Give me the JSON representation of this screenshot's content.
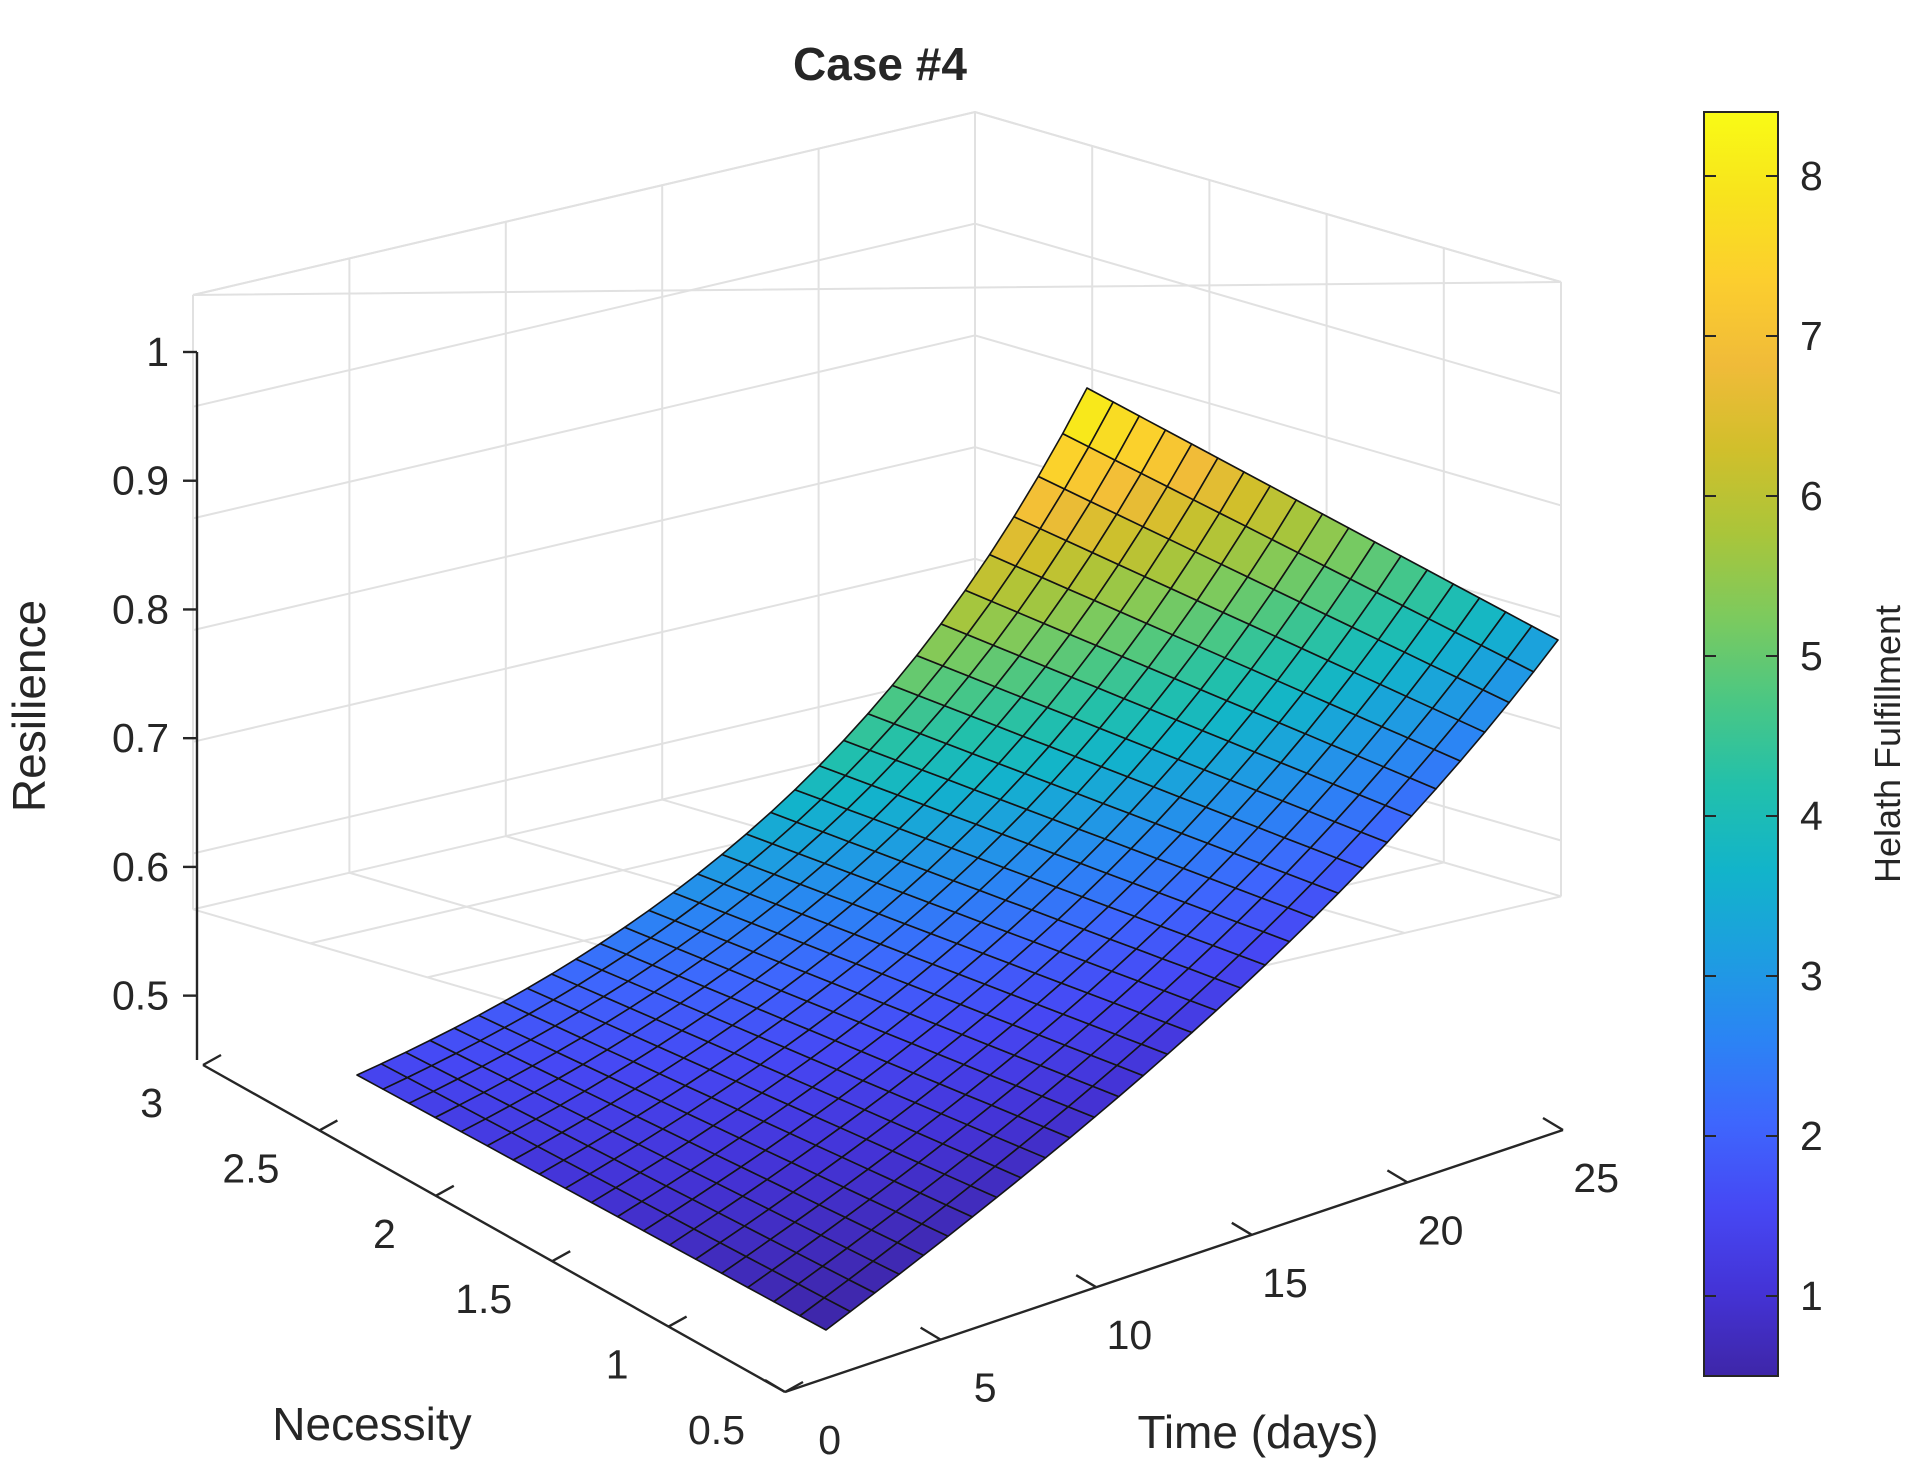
{
  "chart_data": {
    "type": "surface",
    "title": "Case #4",
    "xlabel": "Time (days)",
    "ylabel": "Necessity",
    "zlabel": "Resilience",
    "colorbar_label": "Helath Fulfillment",
    "x_range": [
      0,
      25
    ],
    "y_range": [
      0.5,
      3
    ],
    "z_range": [
      0.45,
      1
    ],
    "x_ticks": [
      0,
      5,
      10,
      15,
      20,
      25
    ],
    "y_ticks": [
      0.5,
      1,
      1.5,
      2,
      2.5,
      3
    ],
    "z_ticks": [
      0.5,
      0.6,
      0.7,
      0.8,
      0.9,
      1
    ],
    "x_tick_labels": [
      "0",
      "5",
      "10",
      "15",
      "20",
      "25"
    ],
    "y_tick_labels": [
      "0.5",
      "1",
      "1.5",
      "2",
      "2.5",
      "3"
    ],
    "z_tick_labels": [
      "0.5",
      "0.6",
      "0.7",
      "0.8",
      "0.9",
      "1"
    ],
    "colorbar_range": [
      0.5,
      8.4
    ],
    "colorbar_ticks": [
      1,
      2,
      3,
      4,
      5,
      6,
      7,
      8
    ],
    "colorbar_tick_labels": [
      "1",
      "2",
      "3",
      "4",
      "5",
      "6",
      "7",
      "8"
    ],
    "colormap": "parula",
    "colormap_stops": [
      "#3e26a8",
      "#4433d6",
      "#4648f4",
      "#3e66fd",
      "#2b84f4",
      "#1d9ee0",
      "#12b4ca",
      "#22c0ab",
      "#4ac784",
      "#7cca5e",
      "#aac53a",
      "#d1bf2b",
      "#f0bb39",
      "#fcce2e",
      "#f8e31d",
      "#f9fb15"
    ],
    "grid": true,
    "surface": {
      "time_days": [
        0,
        25
      ],
      "necessity_edge_values": {
        "necessity_0.5": {
          "at_time_0": 0.45,
          "at_time_25": 0.62
        },
        "necessity_3": {
          "at_time_0": 0.51,
          "at_time_25": 0.95
        }
      },
      "grid_columns": 30,
      "grid_rows": 18
    }
  }
}
